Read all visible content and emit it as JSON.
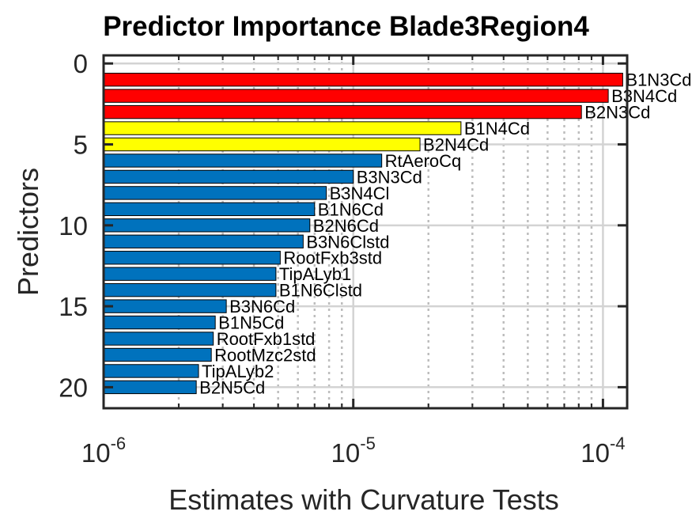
{
  "chart_data": {
    "type": "bar",
    "orientation": "horizontal",
    "title": "Predictor Importance Blade3Region4",
    "xlabel": "Estimates with Curvature Tests",
    "ylabel": "Predictors",
    "x_scale": "log",
    "xlim": [
      1e-06,
      0.000125
    ],
    "ylim": [
      -0.5,
      21.3
    ],
    "y_ticks": [
      "0",
      "5",
      "10",
      "15",
      "20"
    ],
    "y_tick_values": [
      0,
      5,
      10,
      15,
      20
    ],
    "x_ticks": [
      {
        "base": "10",
        "exp": "-6",
        "value": 1e-06
      },
      {
        "base": "10",
        "exp": "-5",
        "value": 1e-05
      },
      {
        "base": "10",
        "exp": "-4",
        "value": 0.0001
      }
    ],
    "grid": true,
    "categories": [
      "B1N3Cd",
      "B3N4Cd",
      "B2N3Cd",
      "B1N4Cd",
      "B2N4Cd",
      "RtAeroCq",
      "B3N3Cd",
      "B3N4Cl",
      "B1N6Cd",
      "B2N6Cd",
      "B3N6Clstd",
      "RootFxb3std",
      "TipALyb1",
      "B1N6Clstd",
      "B3N6Cd",
      "B1N5Cd",
      "RootFxb1std",
      "RootMzc2std",
      "TipALyb2",
      "B2N5Cd"
    ],
    "values": [
      0.00012,
      0.000105,
      8.2e-05,
      2.7e-05,
      1.85e-05,
      1.3e-05,
      1e-05,
      7.8e-06,
      7e-06,
      6.7e-06,
      6.3e-06,
      5.1e-06,
      4.9e-06,
      4.9e-06,
      3.1e-06,
      2.8e-06,
      2.75e-06,
      2.7e-06,
      2.4e-06,
      2.35e-06
    ],
    "colors": [
      "#ff0000",
      "#ff0000",
      "#ff0000",
      "#ffff00",
      "#ffff00",
      "#0072bd",
      "#0072bd",
      "#0072bd",
      "#0072bd",
      "#0072bd",
      "#0072bd",
      "#0072bd",
      "#0072bd",
      "#0072bd",
      "#0072bd",
      "#0072bd",
      "#0072bd",
      "#0072bd",
      "#0072bd",
      "#0072bd"
    ]
  }
}
